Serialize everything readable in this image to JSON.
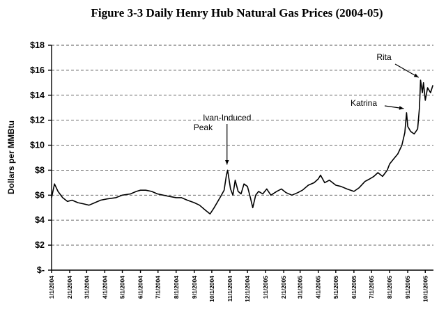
{
  "chart_data": {
    "type": "line",
    "title": "Figure 3-3  Daily Henry Hub Natural Gas Prices (2004-05)",
    "xlabel": "",
    "ylabel": "Dollars per MMBtu",
    "ylim": [
      0,
      18
    ],
    "yticks": [
      0,
      2,
      4,
      6,
      8,
      10,
      12,
      14,
      16,
      18
    ],
    "ytick_labels": [
      "$-",
      "$2",
      "$4",
      "$6",
      "$8",
      "$10",
      "$12",
      "$14",
      "$16",
      "$18"
    ],
    "xlim": [
      "2004-01-01",
      "2005-10-15"
    ],
    "xtick_labels": [
      "1/1/2004",
      "2/1/2004",
      "3/1/2004",
      "4/1/2004",
      "5/1/2004",
      "6/1/2004",
      "7/1/2004",
      "8/1/2004",
      "9/1/2004",
      "10/1/2004",
      "11/1/2004",
      "12/1/2004",
      "1/1/2005",
      "2/1/2005",
      "3/1/2005",
      "4/1/2005",
      "5/1/2005",
      "6/1/2005",
      "7/1/2005",
      "8/1/2005",
      "9/1/2005",
      "10/1/2005"
    ],
    "grid": true,
    "series": [
      {
        "name": "Henry Hub daily price",
        "x": [
          "2004-01-01",
          "2004-01-06",
          "2004-01-12",
          "2004-01-20",
          "2004-01-28",
          "2004-02-05",
          "2004-02-15",
          "2004-02-25",
          "2004-03-05",
          "2004-03-15",
          "2004-03-25",
          "2004-04-05",
          "2004-04-20",
          "2004-05-01",
          "2004-05-15",
          "2004-05-25",
          "2004-06-01",
          "2004-06-10",
          "2004-06-20",
          "2004-06-30",
          "2004-07-10",
          "2004-07-20",
          "2004-08-01",
          "2004-08-10",
          "2004-08-20",
          "2004-09-01",
          "2004-09-10",
          "2004-09-20",
          "2004-09-28",
          "2004-10-05",
          "2004-10-15",
          "2004-10-22",
          "2004-10-26",
          "2004-10-28",
          "2004-11-02",
          "2004-11-06",
          "2004-11-10",
          "2004-11-15",
          "2004-11-20",
          "2004-11-25",
          "2004-12-01",
          "2004-12-06",
          "2004-12-10",
          "2004-12-15",
          "2004-12-20",
          "2004-12-27",
          "2005-01-03",
          "2005-01-10",
          "2005-01-20",
          "2005-01-28",
          "2005-02-05",
          "2005-02-15",
          "2005-02-25",
          "2005-03-05",
          "2005-03-15",
          "2005-03-25",
          "2005-04-01",
          "2005-04-05",
          "2005-04-12",
          "2005-04-20",
          "2005-05-01",
          "2005-05-10",
          "2005-05-20",
          "2005-06-01",
          "2005-06-10",
          "2005-06-20",
          "2005-06-28",
          "2005-07-05",
          "2005-07-12",
          "2005-07-20",
          "2005-07-28",
          "2005-08-01",
          "2005-08-08",
          "2005-08-15",
          "2005-08-22",
          "2005-08-27",
          "2005-08-30",
          "2005-09-01",
          "2005-09-06",
          "2005-09-12",
          "2005-09-18",
          "2005-09-21",
          "2005-09-23",
          "2005-09-26",
          "2005-09-28",
          "2005-10-01",
          "2005-10-05",
          "2005-10-10",
          "2005-10-14"
        ],
        "values": [
          5.8,
          6.9,
          6.3,
          5.8,
          5.5,
          5.6,
          5.4,
          5.3,
          5.2,
          5.4,
          5.6,
          5.7,
          5.8,
          6.0,
          6.1,
          6.3,
          6.4,
          6.4,
          6.3,
          6.1,
          6.0,
          5.9,
          5.8,
          5.8,
          5.6,
          5.4,
          5.2,
          4.8,
          4.5,
          5.0,
          5.8,
          6.4,
          7.6,
          8.0,
          6.5,
          6.0,
          7.2,
          6.3,
          6.1,
          6.9,
          6.7,
          5.8,
          5.0,
          6.0,
          6.3,
          6.1,
          6.5,
          6.0,
          6.3,
          6.5,
          6.2,
          6.0,
          6.2,
          6.4,
          6.8,
          7.0,
          7.3,
          7.6,
          7.0,
          7.2,
          6.8,
          6.7,
          6.5,
          6.3,
          6.6,
          7.1,
          7.3,
          7.5,
          7.8,
          7.5,
          8.0,
          8.5,
          8.9,
          9.3,
          10.0,
          11.0,
          12.6,
          11.5,
          11.1,
          10.9,
          11.3,
          13.0,
          15.2,
          14.2,
          15.0,
          13.6,
          14.6,
          14.2,
          14.8
        ]
      }
    ],
    "annotations": [
      {
        "text_line1": "Ivan-Induced",
        "text_line2": "Peak",
        "x": "2004-10-27",
        "y": 8.0
      },
      {
        "text": "Katrina",
        "x": "2005-08-30",
        "y": 12.6
      },
      {
        "text": "Rita",
        "x": "2005-09-22",
        "y": 15.2
      }
    ]
  }
}
